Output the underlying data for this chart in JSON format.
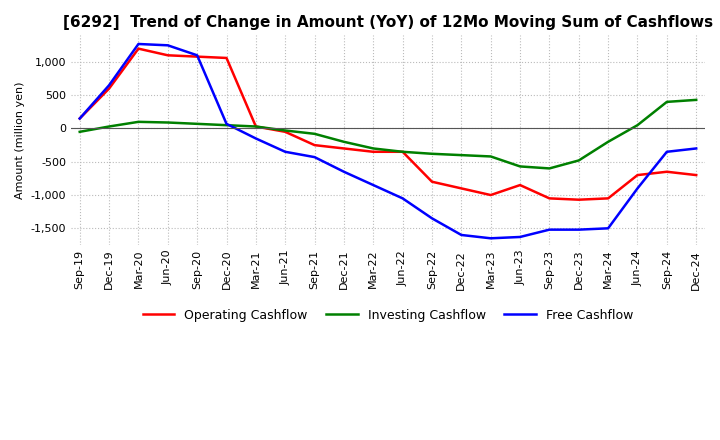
{
  "title": "[6292]  Trend of Change in Amount (YoY) of 12Mo Moving Sum of Cashflows",
  "ylabel": "Amount (million yen)",
  "background_color": "#ffffff",
  "grid_color": "#bbbbbb",
  "x_labels": [
    "Sep-19",
    "Dec-19",
    "Mar-20",
    "Jun-20",
    "Sep-20",
    "Dec-20",
    "Mar-21",
    "Jun-21",
    "Sep-21",
    "Dec-21",
    "Mar-22",
    "Jun-22",
    "Sep-22",
    "Dec-22",
    "Mar-23",
    "Jun-23",
    "Sep-23",
    "Dec-23",
    "Mar-24",
    "Jun-24",
    "Sep-24",
    "Dec-24"
  ],
  "operating_cashflow": [
    150,
    600,
    1200,
    1100,
    1080,
    1060,
    30,
    -50,
    -250,
    -300,
    -350,
    -350,
    -800,
    -900,
    -1000,
    -850,
    -1050,
    -1070,
    -1050,
    -700,
    -650,
    -700
  ],
  "investing_cashflow": [
    -50,
    30,
    100,
    90,
    70,
    50,
    30,
    -30,
    -80,
    -200,
    -300,
    -350,
    -380,
    -400,
    -420,
    -570,
    -600,
    -480,
    -200,
    50,
    400,
    430
  ],
  "free_cashflow": [
    150,
    650,
    1270,
    1250,
    1100,
    70,
    -150,
    -350,
    -430,
    -650,
    -850,
    -1050,
    -1350,
    -1600,
    -1650,
    -1630,
    -1520,
    -1520,
    -1500,
    -900,
    -350,
    -300
  ],
  "ylim": [
    -1750,
    1400
  ],
  "yticks": [
    -1500,
    -1000,
    -500,
    0,
    500,
    1000
  ],
  "operating_color": "#ff0000",
  "investing_color": "#008000",
  "free_color": "#0000ff",
  "title_fontsize": 11,
  "axis_fontsize": 8,
  "legend_fontsize": 9
}
